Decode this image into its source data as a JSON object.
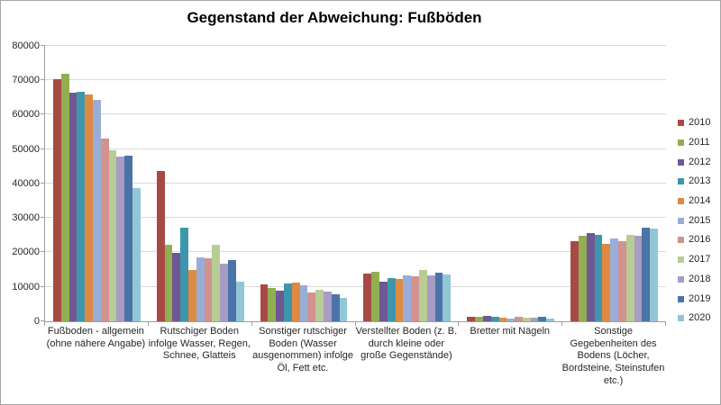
{
  "chart_data": {
    "type": "bar",
    "title": "Gegenstand der Abweichung: Fußböden",
    "xlabel": "",
    "ylabel": "",
    "ylim": [
      0,
      80000
    ],
    "grid": true,
    "legend_position": "right",
    "y_tick_labels": [
      "0",
      "10000",
      "20000",
      "30000",
      "40000",
      "50000",
      "60000",
      "70000",
      "80000"
    ],
    "categories": [
      "Fußboden - allgemein\n(ohne nähere Angabe)",
      "Rutschiger Boden\ninfolge Wasser, Regen,\nSchnee, Glatteis",
      "Sonstiger rutschiger\nBoden (Wasser\nausgenommen) infolge\nÖl, Fett etc.",
      "Verstellter Boden (z. B.\ndurch kleine oder\ngroße Gegenstände)",
      "Bretter mit Nägeln",
      "Sonstige\nGegebenheiten des\nBodens (Löcher,\nBordsteine, Steinstufen\netc.)"
    ],
    "series": [
      {
        "name": "2010",
        "color": "#a84a44",
        "values": [
          70300,
          43700,
          10600,
          13800,
          1300,
          23300
        ]
      },
      {
        "name": "2011",
        "color": "#92ae52",
        "values": [
          71800,
          22300,
          9700,
          14300,
          1400,
          24800
        ]
      },
      {
        "name": "2012",
        "color": "#6e5894",
        "values": [
          66400,
          19800,
          8900,
          11400,
          1600,
          25500
        ]
      },
      {
        "name": "2013",
        "color": "#3e96ac",
        "values": [
          66700,
          27100,
          10900,
          12500,
          1400,
          25000
        ]
      },
      {
        "name": "2014",
        "color": "#de8a42",
        "values": [
          65800,
          15000,
          11200,
          12200,
          1100,
          22500
        ]
      },
      {
        "name": "2015",
        "color": "#98aed8",
        "values": [
          64200,
          18500,
          10500,
          13400,
          800,
          24100
        ]
      },
      {
        "name": "2016",
        "color": "#d2928e",
        "values": [
          53100,
          18300,
          8300,
          13200,
          1250,
          23300
        ]
      },
      {
        "name": "2017",
        "color": "#b8cc96",
        "values": [
          49600,
          22200,
          9100,
          14900,
          1000,
          25100
        ]
      },
      {
        "name": "2018",
        "color": "#a89bc4",
        "values": [
          47800,
          16800,
          8700,
          13400,
          1100,
          24900
        ]
      },
      {
        "name": "2019",
        "color": "#4a74a8",
        "values": [
          48100,
          17900,
          7900,
          14200,
          1300,
          27300
        ]
      },
      {
        "name": "2020",
        "color": "#92c6d6",
        "values": [
          38800,
          11400,
          6800,
          13500,
          900,
          27000
        ]
      }
    ]
  }
}
